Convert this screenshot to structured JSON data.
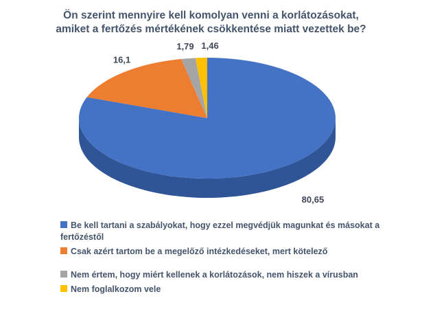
{
  "title": {
    "line1": "Ön szerint mennyire kell komolyan venni a korlátozásokat,",
    "line2": "amiket a fertőzés mértékének csökkentése miatt vezettek be?"
  },
  "chart_data": {
    "type": "pie",
    "style": "3d",
    "title": "Ön szerint mennyire kell komolyan venni a korlátozásokat, amiket a fertőzés mértékének csökkentése miatt vezettek be?",
    "start_angle_deg": 0,
    "direction": "clockwise",
    "legend_position": "bottom-left",
    "data_labels": "outside",
    "title_color": "#44546A",
    "legend_text_color": "#44546A",
    "label_text_color": "#3d4657",
    "slices": [
      {
        "label": "Be kell tartani a szabályokat, hogy ezzel megvédjük magunkat és másokat a fertőzéstől",
        "value": 80.65,
        "display": "80,65",
        "color": "#4472C4",
        "side_color": "#2f5597"
      },
      {
        "label": "Csak azért tartom be a megelőző intézkedéseket, mert kötelező",
        "value": 16.1,
        "display": "16,1",
        "color": "#ED7D31",
        "side_color": "#b55c1a"
      },
      {
        "label": "Nem értem, hogy miért kellenek a korlátozások, nem hiszek a vírusban",
        "value": 1.79,
        "display": "1,79",
        "color": "#A5A5A5",
        "side_color": "#7f7f7f"
      },
      {
        "label": "Nem foglalkozom vele",
        "value": 1.46,
        "display": "1,46",
        "color": "#FFC000",
        "side_color": "#bf9000"
      }
    ]
  }
}
